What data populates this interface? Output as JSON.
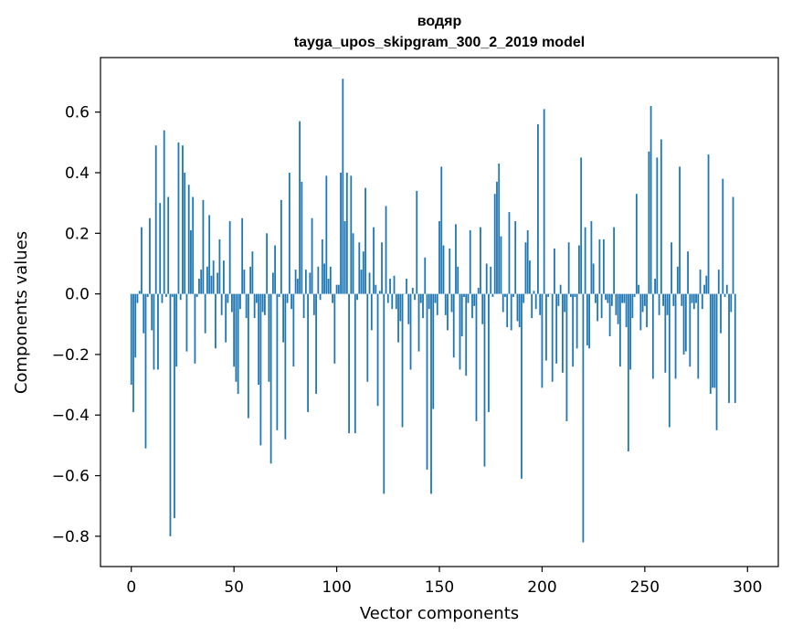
{
  "chart_data": {
    "type": "bar",
    "title": "водяр",
    "subtitle": "tayga_upos_skipgram_300_2_2019 model",
    "xlabel": "Vector components",
    "ylabel": "Components values",
    "xlim": [
      -15,
      315
    ],
    "ylim": [
      -0.9,
      0.78
    ],
    "xticks": [
      0,
      50,
      100,
      150,
      200,
      250,
      300
    ],
    "yticks": [
      -0.8,
      -0.6,
      -0.4,
      -0.2,
      0.0,
      0.2,
      0.4,
      0.6
    ],
    "xtick_labels": [
      "0",
      "50",
      "100",
      "150",
      "200",
      "250",
      "300"
    ],
    "ytick_labels": [
      "−0.8",
      "−0.6",
      "−0.4",
      "−0.2",
      "0.0",
      "0.2",
      "0.4",
      "0.6"
    ],
    "bar_color": "#1f77b4",
    "x_start": 0,
    "values": [
      -0.3,
      -0.39,
      -0.21,
      -0.03,
      0.01,
      0.22,
      -0.13,
      -0.51,
      -0.01,
      0.25,
      -0.12,
      -0.25,
      0.49,
      -0.25,
      0.3,
      -0.03,
      0.54,
      -0.01,
      0.32,
      -0.8,
      -0.01,
      -0.74,
      -0.24,
      0.5,
      -0.02,
      0.49,
      0.4,
      -0.19,
      0.36,
      0.21,
      0.32,
      -0.23,
      -0.01,
      0.05,
      0.08,
      0.31,
      -0.13,
      0.09,
      0.26,
      0.06,
      0.11,
      -0.18,
      0.07,
      0.18,
      -0.07,
      0.11,
      -0.16,
      -0.03,
      0.24,
      -0.06,
      -0.24,
      -0.29,
      -0.33,
      -0.05,
      0.25,
      0.08,
      -0.08,
      -0.41,
      0.09,
      0.14,
      -0.08,
      -0.03,
      -0.3,
      -0.5,
      -0.06,
      -0.07,
      0.2,
      -0.29,
      -0.56,
      0.07,
      0.16,
      -0.45,
      -0.01,
      0.31,
      -0.16,
      -0.48,
      -0.03,
      0.4,
      -0.05,
      -0.24,
      0.08,
      0.05,
      0.57,
      0.37,
      -0.08,
      0.08,
      -0.39,
      0.07,
      0.25,
      -0.07,
      -0.33,
      0.09,
      -0.02,
      0.18,
      0.1,
      0.39,
      0.05,
      0.09,
      -0.03,
      -0.23,
      0.03,
      0.03,
      0.4,
      0.71,
      0.24,
      0.4,
      -0.46,
      0.39,
      0.2,
      -0.46,
      -0.02,
      0.17,
      0.08,
      0.14,
      0.35,
      -0.29,
      0.07,
      -0.12,
      0.22,
      0.03,
      -0.37,
      0.01,
      0.17,
      -0.66,
      0.29,
      -0.03,
      0.05,
      -0.05,
      0.06,
      -0.05,
      -0.16,
      -0.09,
      -0.44,
      0.0,
      0.05,
      -0.1,
      -0.25,
      0.02,
      -0.02,
      0.34,
      -0.19,
      -0.03,
      -0.08,
      0.12,
      -0.58,
      -0.05,
      -0.66,
      -0.38,
      -0.03,
      -0.07,
      0.24,
      0.42,
      0.16,
      -0.07,
      -0.12,
      0.15,
      -0.06,
      -0.21,
      0.23,
      0.09,
      -0.25,
      -0.14,
      -0.01,
      -0.27,
      -0.03,
      0.21,
      -0.08,
      -0.04,
      -0.42,
      0.02,
      0.22,
      -0.1,
      -0.57,
      0.1,
      -0.39,
      0.09,
      -0.01,
      0.33,
      0.37,
      0.43,
      0.19,
      -0.06,
      -0.01,
      -0.11,
      0.27,
      -0.12,
      -0.01,
      0.24,
      -0.09,
      -0.11,
      -0.61,
      -0.03,
      0.17,
      0.21,
      0.11,
      -0.08,
      0.01,
      -0.05,
      0.56,
      -0.07,
      -0.31,
      0.61,
      -0.22,
      -0.01,
      0.0,
      -0.29,
      0.15,
      -0.23,
      -0.04,
      0.03,
      -0.26,
      -0.06,
      -0.42,
      0.17,
      -0.01,
      -0.24,
      -0.01,
      -0.18,
      0.16,
      0.45,
      -0.82,
      0.22,
      -0.17,
      -0.18,
      0.24,
      0.1,
      -0.03,
      -0.09,
      0.18,
      -0.08,
      0.18,
      -0.02,
      -0.03,
      -0.14,
      -0.04,
      0.22,
      -0.07,
      -0.1,
      -0.24,
      -0.03,
      -0.03,
      -0.11,
      -0.52,
      -0.25,
      -0.08,
      -0.01,
      0.33,
      0.03,
      -0.12,
      -0.06,
      -0.04,
      -0.11,
      0.47,
      0.62,
      -0.28,
      0.05,
      0.45,
      -0.07,
      0.51,
      -0.04,
      -0.26,
      -0.07,
      -0.44,
      0.17,
      -0.04,
      -0.28,
      0.09,
      0.42,
      -0.04,
      -0.2,
      -0.19,
      0.14,
      -0.24,
      -0.03,
      -0.05,
      -0.03,
      -0.28,
      0.08,
      -0.05,
      0.03,
      0.06,
      0.46,
      -0.33,
      -0.31,
      -0.31,
      -0.45,
      0.08,
      -0.13,
      0.38,
      -0.01,
      0.03,
      -0.36,
      -0.06,
      0.32,
      -0.36
    ]
  }
}
